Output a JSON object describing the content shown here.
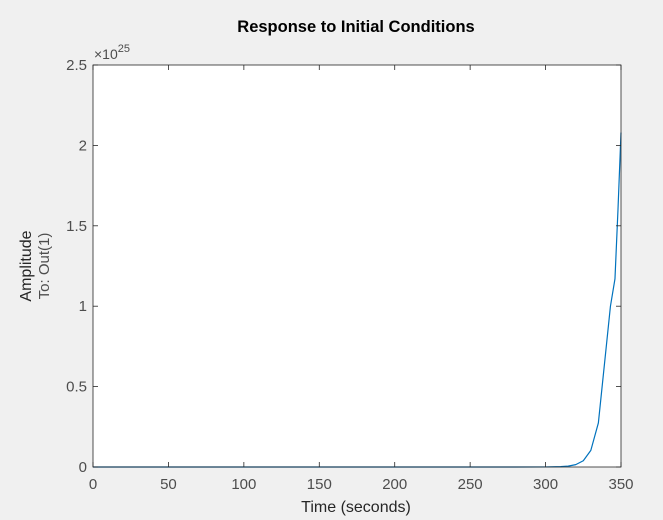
{
  "figure": {
    "background": "#f0f0f0",
    "axes_background": "#ffffff",
    "axis_color": "#262626",
    "tick_label_color": "#4d4d4d"
  },
  "chart_data": {
    "type": "line",
    "title": "Response to Initial Conditions",
    "xlabel": "Time (seconds)",
    "ylabel": "Amplitude",
    "ylabel_sub": "To: Out(1)",
    "y_exponent_base": "×10",
    "y_exponent_power": "25",
    "xlim": [
      0,
      350
    ],
    "ylim": [
      0,
      2.5
    ],
    "xticks": [
      0,
      50,
      100,
      150,
      200,
      250,
      300,
      350
    ],
    "xtick_labels": [
      "0",
      "50",
      "100",
      "150",
      "200",
      "250",
      "300",
      "350"
    ],
    "yticks": [
      0,
      0.5,
      1,
      1.5,
      2,
      2.5
    ],
    "ytick_labels": [
      "0",
      "0.5",
      "1",
      "1.5",
      "2",
      "2.5"
    ],
    "grid": false,
    "series": [
      {
        "color": "#0072bd",
        "x": [
          0,
          50,
          100,
          150,
          200,
          250,
          280,
          300,
          310,
          315,
          320,
          325,
          330,
          335,
          340,
          343,
          346,
          348,
          350
        ],
        "y": [
          0,
          0,
          0,
          0,
          0,
          0,
          0,
          0.0003,
          0.0021,
          0.0055,
          0.0147,
          0.039,
          0.1033,
          0.2742,
          0.7275,
          1.0,
          1.17,
          1.6,
          2.08
        ]
      }
    ]
  }
}
